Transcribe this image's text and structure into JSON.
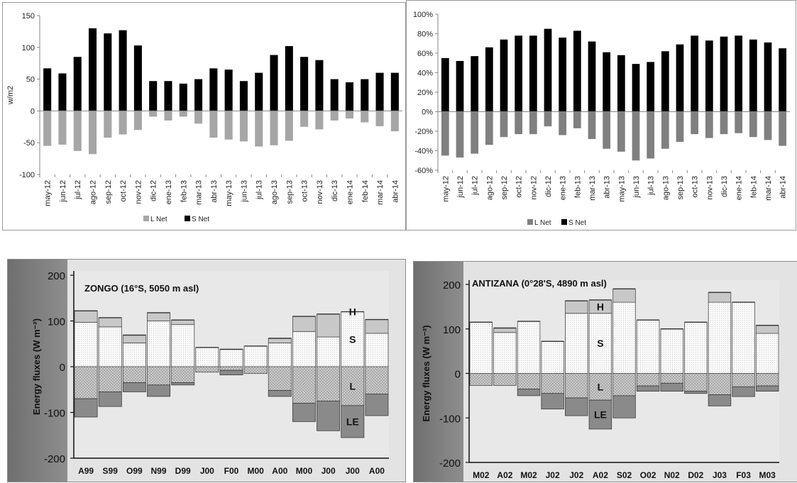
{
  "chart_data": [
    {
      "type": "bar",
      "stacked": true,
      "ylabel": "w/m2",
      "ylim": [
        -100,
        150
      ],
      "yticks": [
        -100,
        -50,
        0,
        50,
        100,
        150
      ],
      "grid": false,
      "legend_placement": "bottom",
      "categories": [
        "may-12",
        "jun-12",
        "jul-12",
        "ago-12",
        "sep-12",
        "oct-12",
        "nov-12",
        "dic-12",
        "ene-13",
        "feb-13",
        "mar-13",
        "abr-13",
        "may-13",
        "jun-13",
        "jul-13",
        "ago-13",
        "sep-13",
        "oct-13",
        "nov-13",
        "dic-13",
        "ene-14",
        "feb-14",
        "mar-14",
        "abr-14"
      ],
      "series": [
        {
          "name": "L Net",
          "color": "#a6a6a6",
          "values": [
            -55,
            -53,
            -63,
            -68,
            -42,
            -37,
            -30,
            -9,
            -15,
            -9,
            -20,
            -42,
            -45,
            -48,
            -56,
            -54,
            -47,
            -25,
            -29,
            -15,
            -12,
            -18,
            -24,
            -32
          ]
        },
        {
          "name": "S Net",
          "color": "#000000",
          "values": [
            67,
            59,
            85,
            130,
            122,
            127,
            103,
            47,
            47,
            43,
            50,
            67,
            65,
            47,
            60,
            88,
            102,
            85,
            80,
            50,
            45,
            50,
            60,
            60
          ]
        }
      ]
    },
    {
      "type": "bar",
      "stacked": true,
      "ylim": [
        -60,
        100
      ],
      "yticks": [
        -60,
        -40,
        -20,
        0,
        20,
        40,
        60,
        80,
        100
      ],
      "ytick_suffix": "%",
      "grid": false,
      "legend_placement": "bottom",
      "categories": [
        "may-12",
        "jun-12",
        "jul-12",
        "ago-12",
        "sep-12",
        "oct-12",
        "nov-12",
        "dic-12",
        "ene-13",
        "feb-13",
        "mar-13",
        "abr-13",
        "may-13",
        "jun-13",
        "jul-13",
        "ago-13",
        "sep-13",
        "oct-13",
        "nov-13",
        "dic-13",
        "ene-14",
        "feb-14",
        "mar-14",
        "abr-14"
      ],
      "series": [
        {
          "name": "L Net",
          "color": "#808080",
          "values": [
            -45,
            -47,
            -43,
            -34,
            -26,
            -23,
            -23,
            -15,
            -24,
            -17,
            -28,
            -38,
            -41,
            -50,
            -48,
            -38,
            -31,
            -23,
            -27,
            -23,
            -22,
            -26,
            -29,
            -35
          ]
        },
        {
          "name": "S Net",
          "color": "#000000",
          "values": [
            55,
            52,
            57,
            66,
            74,
            78,
            78,
            85,
            76,
            83,
            72,
            61,
            58,
            49,
            51,
            62,
            69,
            78,
            73,
            77,
            78,
            74,
            71,
            65
          ]
        }
      ]
    },
    {
      "type": "bar",
      "stacked": true,
      "title": "ZONGO (16°S, 5050 m asl)",
      "ylabel": "Energy fluxes (W m⁻²)",
      "ylim": [
        -200,
        200
      ],
      "yticks": [
        -200,
        -100,
        0,
        100,
        200
      ],
      "categories": [
        "A99",
        "S99",
        "O99",
        "N99",
        "D99",
        "J00",
        "F00",
        "M00",
        "A00",
        "M00",
        "J00",
        "J00",
        "A00"
      ],
      "annotations": [
        "H",
        "S",
        "L",
        "LE"
      ],
      "series": [
        {
          "name": "S",
          "values": [
            97,
            87,
            52,
            100,
            92,
            42,
            38,
            45,
            52,
            77,
            65,
            120,
            73
          ]
        },
        {
          "name": "H",
          "values": [
            25,
            20,
            17,
            18,
            10,
            0,
            0,
            0,
            10,
            33,
            50,
            0,
            30
          ]
        },
        {
          "name": "L",
          "values": [
            -70,
            -55,
            -35,
            -40,
            -35,
            -12,
            -8,
            -15,
            -52,
            -80,
            -75,
            -85,
            -60
          ]
        },
        {
          "name": "LE",
          "values": [
            -40,
            -32,
            -20,
            -25,
            -5,
            0,
            -10,
            0,
            -13,
            -40,
            -65,
            -70,
            -47
          ]
        }
      ]
    },
    {
      "type": "bar",
      "stacked": true,
      "title": "ANTIZANA (0°28'S, 4890 m asl)",
      "ylabel": "Energy fluxes (W m⁻²)",
      "ylim": [
        -200,
        200
      ],
      "yticks": [
        -200,
        -100,
        0,
        100,
        200
      ],
      "categories": [
        "M02",
        "A02",
        "M02",
        "J02",
        "J02",
        "A02",
        "S02",
        "O02",
        "N02",
        "D02",
        "J03",
        "F03",
        "M03"
      ],
      "annotations": [
        "H",
        "S",
        "L",
        "LE"
      ],
      "series": [
        {
          "name": "S",
          "values": [
            115,
            92,
            117,
            72,
            135,
            135,
            160,
            120,
            100,
            115,
            160,
            160,
            90
          ]
        },
        {
          "name": "H",
          "values": [
            0,
            10,
            0,
            0,
            28,
            30,
            30,
            0,
            0,
            0,
            22,
            0,
            18
          ]
        },
        {
          "name": "L",
          "values": [
            -27,
            -27,
            -35,
            -45,
            -55,
            -60,
            -50,
            -28,
            -22,
            -40,
            -48,
            -30,
            -28
          ]
        },
        {
          "name": "LE",
          "values": [
            0,
            0,
            -15,
            -35,
            -40,
            -65,
            -50,
            -12,
            -18,
            -5,
            -25,
            -22,
            -12
          ]
        }
      ]
    }
  ]
}
